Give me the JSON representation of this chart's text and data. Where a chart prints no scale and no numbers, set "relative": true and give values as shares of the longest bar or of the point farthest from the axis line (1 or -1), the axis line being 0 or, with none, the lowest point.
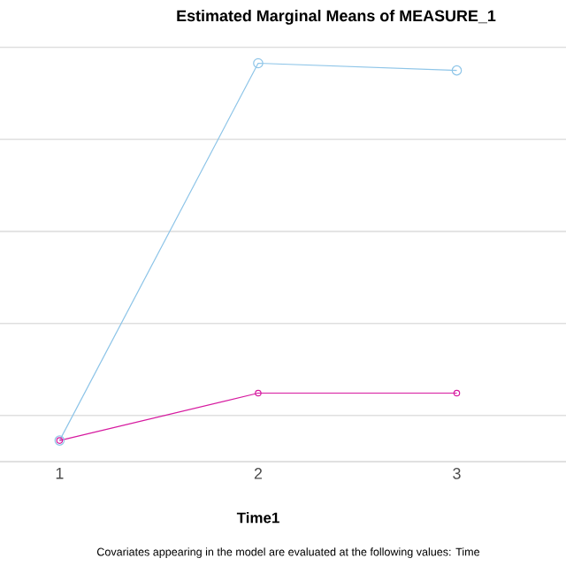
{
  "chart_data": {
    "type": "line",
    "title": "Estimated Marginal Means of MEASURE_1",
    "xlabel": "Time1",
    "categories": [
      "1",
      "2",
      "3"
    ],
    "relative": true,
    "grid": "y",
    "marker": "circle",
    "line_style": "solid",
    "series": [
      {
        "color": "#8ec5e8",
        "values": [
          0.053,
          1,
          0.982
        ]
      },
      {
        "color": "#d6199f",
        "values": [
          0.053,
          0.172,
          0.172
        ]
      }
    ],
    "annotations": [
      "Covariates appearing in the model are evaluated at the following values: Time"
    ]
  }
}
